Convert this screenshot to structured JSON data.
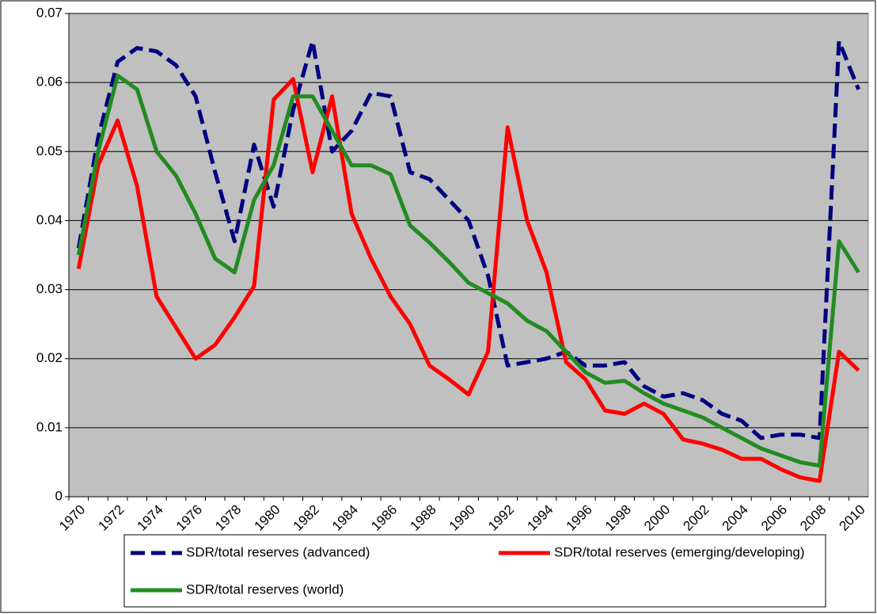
{
  "chart_data": {
    "type": "line",
    "categories": [
      "1970",
      null,
      "1972",
      null,
      "1974",
      null,
      "1976",
      null,
      "1978",
      null,
      "1980",
      null,
      "1982",
      null,
      "1984",
      null,
      "1986",
      null,
      "1988",
      null,
      "1990",
      null,
      "1992",
      null,
      "1994",
      null,
      "1996",
      null,
      "1998",
      null,
      "2000",
      null,
      "2002",
      null,
      "2004",
      null,
      "2006",
      null,
      "2008",
      null,
      "2010"
    ],
    "series": [
      {
        "name": "SDR/total reserves (advanced)",
        "color": "#000080",
        "linestyle": "dashed",
        "values": [
          0.036,
          0.052,
          0.063,
          0.065,
          0.0645,
          0.0625,
          0.058,
          0.047,
          0.037,
          0.051,
          0.042,
          0.056,
          0.066,
          0.05,
          0.053,
          0.0585,
          0.058,
          0.047,
          0.046,
          0.043,
          0.04,
          0.032,
          0.019,
          0.0195,
          0.02,
          0.021,
          0.019,
          0.019,
          0.0195,
          0.016,
          0.0145,
          0.015,
          0.014,
          0.012,
          0.011,
          0.0085,
          0.009,
          0.009,
          0.0085,
          0.066,
          0.059
        ]
      },
      {
        "name": "SDR/total reserves (emerging/developing)",
        "color": "#ff0000",
        "linestyle": "solid",
        "values": [
          0.033,
          0.048,
          0.0545,
          0.045,
          0.029,
          0.0245,
          0.02,
          0.022,
          0.026,
          0.0305,
          0.0575,
          0.0605,
          0.047,
          0.058,
          0.041,
          0.0345,
          0.029,
          0.025,
          0.019,
          0.017,
          0.0148,
          0.021,
          0.0535,
          0.04,
          0.0325,
          0.0195,
          0.017,
          0.0125,
          0.012,
          0.0135,
          0.012,
          0.0083,
          0.0077,
          0.0068,
          0.0055,
          0.0055,
          0.004,
          0.0028,
          0.0023,
          0.021,
          0.0183
        ]
      },
      {
        "name": "SDR/total reserves (world)",
        "color": "#228b22",
        "linestyle": "solid",
        "values": [
          0.035,
          0.05,
          0.061,
          0.059,
          0.05,
          0.0465,
          0.041,
          0.0345,
          0.0325,
          0.043,
          0.048,
          0.058,
          0.058,
          0.053,
          0.048,
          0.048,
          0.0467,
          0.0393,
          0.0368,
          0.034,
          0.031,
          0.0295,
          0.028,
          0.0255,
          0.024,
          0.021,
          0.018,
          0.0165,
          0.0168,
          0.015,
          0.0135,
          0.0125,
          0.0115,
          0.01,
          0.0085,
          0.007,
          0.006,
          0.005,
          0.0045,
          0.037,
          0.0325
        ]
      }
    ],
    "ylim": [
      0,
      0.07
    ],
    "yticks": [
      0,
      0.01,
      0.02,
      0.03,
      0.04,
      0.05,
      0.06,
      0.07
    ],
    "grid": true,
    "legend": "bottom",
    "plot_background": "#c0c0c0"
  }
}
